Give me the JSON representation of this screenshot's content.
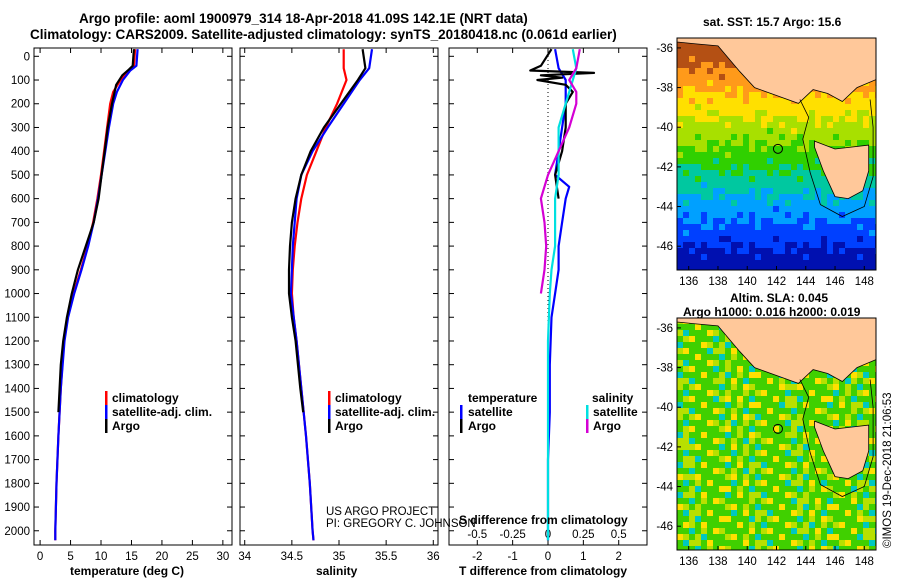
{
  "header": {
    "title_line1": "Argo profile: aoml 1900979_314 18-Apr-2018 41.09S 142.1E (NRT data)",
    "title_line2": "Climatology: CARS2009. Satellite-adjusted climatology: synTS_20180418.nc (0.061d earlier)"
  },
  "colors": {
    "climatology": "#ff0000",
    "satellite": "#0000ff",
    "argo": "#000000",
    "argo_salinity": "#d400d4",
    "satellite_salinity": "#00e0e0"
  },
  "depth_ticks": [
    "0",
    "100",
    "200",
    "300",
    "400",
    "500",
    "600",
    "700",
    "800",
    "900",
    "1000",
    "1100",
    "1200",
    "1300",
    "1400",
    "1500",
    "1600",
    "1700",
    "1800",
    "1900",
    "2000"
  ],
  "chart_data": [
    {
      "type": "line",
      "id": "temperature",
      "xlabel": "temperature (deg C)",
      "xticks": [
        "0",
        "5",
        "10",
        "15",
        "20",
        "25",
        "30"
      ],
      "xlim": [
        -1,
        31.5
      ],
      "ylim": [
        2060,
        -35
      ],
      "legend": {
        "placement": "center-left",
        "entries": [
          "climatology",
          "satellite-adj. clim.",
          "Argo"
        ]
      },
      "series": [
        {
          "name": "climatology",
          "color": "#ff0000",
          "depth": [
            -30,
            40,
            60,
            100,
            150,
            200,
            300,
            400,
            500,
            600,
            700,
            800,
            900,
            1000,
            1100,
            1200,
            1400,
            1600,
            1800,
            2000,
            2040
          ],
          "values": [
            15.6,
            15.4,
            14.5,
            13.2,
            12.0,
            11.5,
            11.0,
            10.5,
            10.0,
            9.4,
            8.7,
            7.8,
            6.7,
            5.5,
            4.5,
            3.9,
            3.4,
            3.0,
            2.7,
            2.5,
            2.5
          ]
        },
        {
          "name": "satellite-adj. clim.",
          "color": "#0000ff",
          "depth": [
            -30,
            40,
            60,
            100,
            150,
            200,
            300,
            400,
            500,
            600,
            700,
            800,
            900,
            1000,
            1100,
            1200,
            1400,
            1600,
            1800,
            2000,
            2040
          ],
          "values": [
            16.0,
            15.8,
            14.8,
            13.6,
            12.6,
            12.0,
            11.3,
            10.7,
            10.1,
            9.5,
            8.8,
            7.9,
            6.8,
            5.6,
            4.6,
            4.0,
            3.4,
            3.0,
            2.7,
            2.5,
            2.5
          ]
        },
        {
          "name": "Argo",
          "color": "#000000",
          "depth": [
            -30,
            40,
            55,
            80,
            120,
            200,
            300,
            400,
            500,
            600,
            700,
            800,
            900,
            1000,
            1100,
            1200,
            1300,
            1400,
            1500
          ],
          "values": [
            15.4,
            15.2,
            14.6,
            13.5,
            12.5,
            11.8,
            11.1,
            10.6,
            10.1,
            9.6,
            8.8,
            7.5,
            6.2,
            5.2,
            4.4,
            3.8,
            3.4,
            3.2,
            3.0
          ]
        }
      ]
    },
    {
      "type": "line",
      "id": "salinity",
      "xlabel": "salinity",
      "xticks": [
        "34",
        "34.5",
        "35",
        "35.5",
        "36"
      ],
      "xlim": [
        33.95,
        36.05
      ],
      "ylim": [
        2060,
        -35
      ],
      "legend": {
        "placement": "center-left",
        "entries": [
          "climatology",
          "satellite-adj. clim.",
          "Argo"
        ]
      },
      "series": [
        {
          "name": "climatology",
          "color": "#ff0000",
          "depth": [
            -30,
            50,
            100,
            200,
            300,
            400,
            500,
            600,
            700,
            800,
            900,
            1000,
            1100,
            1200,
            1400,
            1600,
            1800,
            2000,
            2040
          ],
          "values": [
            35.05,
            35.05,
            35.08,
            34.98,
            34.86,
            34.76,
            34.66,
            34.6,
            34.56,
            34.53,
            34.51,
            34.5,
            34.52,
            34.55,
            34.6,
            34.65,
            34.69,
            34.72,
            34.73
          ]
        },
        {
          "name": "satellite-adj. clim.",
          "color": "#0000ff",
          "depth": [
            -30,
            50,
            100,
            200,
            300,
            400,
            500,
            600,
            700,
            800,
            900,
            1000,
            1100,
            1200,
            1400,
            1600,
            1800,
            2000,
            2040
          ],
          "values": [
            35.35,
            35.32,
            35.22,
            35.05,
            34.88,
            34.72,
            34.6,
            34.55,
            34.53,
            34.51,
            34.5,
            34.49,
            34.52,
            34.55,
            34.6,
            34.65,
            34.69,
            34.72,
            34.73
          ]
        },
        {
          "name": "Argo",
          "color": "#000000",
          "depth": [
            -30,
            50,
            100,
            200,
            300,
            400,
            500,
            600,
            700,
            800,
            900,
            1000,
            1100,
            1200,
            1400,
            1500
          ],
          "values": [
            35.25,
            35.28,
            35.2,
            35.02,
            34.84,
            34.7,
            34.6,
            34.54,
            34.5,
            34.48,
            34.47,
            34.47,
            34.5,
            34.54,
            34.59,
            34.62
          ]
        }
      ]
    },
    {
      "type": "line",
      "id": "difference",
      "xlabel": "T difference from climatology",
      "xlabel_top": "S difference from climatology",
      "xticks": [
        "-2",
        "-1",
        "0",
        "1",
        "2"
      ],
      "xticks_top": [
        "-0.5",
        "-0.25",
        "0",
        "0.25",
        "0.5"
      ],
      "xlim": [
        -2.8,
        2.8
      ],
      "ylim": [
        2060,
        -35
      ],
      "legend_temperature": {
        "heading": "temperature",
        "entries": [
          "satellite",
          "Argo"
        ]
      },
      "legend_salinity": {
        "heading": "salinity",
        "entries": [
          "satellite",
          "Argo"
        ]
      },
      "series": [
        {
          "name": "satellite",
          "color": "#0000ff",
          "depth": [
            -30,
            50,
            100,
            200,
            300,
            400,
            500,
            550,
            600,
            700,
            800,
            900,
            1000,
            1100,
            1300,
            1500,
            1700,
            1900,
            2040
          ],
          "values": [
            0.2,
            0.3,
            0.5,
            0.5,
            0.4,
            0.3,
            0.2,
            0.6,
            0.5,
            0.4,
            0.3,
            0.3,
            0.2,
            0.1,
            0.05,
            0.05,
            0.0,
            0.0,
            0.0
          ]
        },
        {
          "name": "Argo",
          "color": "#000000",
          "depth": [
            -30,
            40,
            60,
            70,
            80,
            90,
            100,
            120,
            150,
            200,
            300,
            400,
            500,
            600
          ],
          "values": [
            0.1,
            -0.2,
            -0.5,
            1.3,
            -0.2,
            0.4,
            -0.3,
            0.5,
            0.7,
            0.5,
            0.5,
            0.4,
            0.2,
            0.3
          ]
        },
        {
          "name": "satellite",
          "color": "#00e0e0",
          "depth": [
            -30,
            50,
            100,
            200,
            300,
            400,
            500,
            600,
            700,
            800,
            900,
            1000,
            1200,
            1400,
            1600,
            1800,
            2000,
            2040
          ],
          "values": [
            0.7,
            0.8,
            0.7,
            0.5,
            0.3,
            0.3,
            0.3,
            0.2,
            0.2,
            0.2,
            0.1,
            0.05,
            0.0,
            0.0,
            0.0,
            0.0,
            0.0,
            0.0
          ]
        },
        {
          "name": "Argo",
          "color": "#d400d4",
          "depth": [
            -30,
            50,
            100,
            150,
            200,
            300,
            400,
            500,
            600,
            700,
            800,
            900,
            1000
          ],
          "values": [
            0.9,
            0.8,
            0.6,
            0.8,
            0.8,
            0.6,
            0.3,
            0.0,
            -0.2,
            -0.1,
            -0.05,
            -0.1,
            -0.2
          ]
        }
      ]
    }
  ],
  "project_note": {
    "line1": "US ARGO PROJECT",
    "line2": "PI: GREGORY C. JOHNSON"
  },
  "maps": {
    "sst_title": "sat. SST: 15.7 Argo: 15.6",
    "sla_title1": "Altim. SLA: 0.045",
    "sla_title2": "Argo h1000: 0.016 h2000: 0.019",
    "lon_ticks": [
      "136",
      "138",
      "140",
      "142",
      "144",
      "146",
      "148"
    ],
    "lat_ticks": [
      "-36",
      "-38",
      "-40",
      "-42",
      "-44",
      "-46"
    ],
    "float_position": {
      "lon": 142.1,
      "lat": -41.09
    },
    "credit": "©IMOS 19-Dec-2018 21:06:53"
  }
}
